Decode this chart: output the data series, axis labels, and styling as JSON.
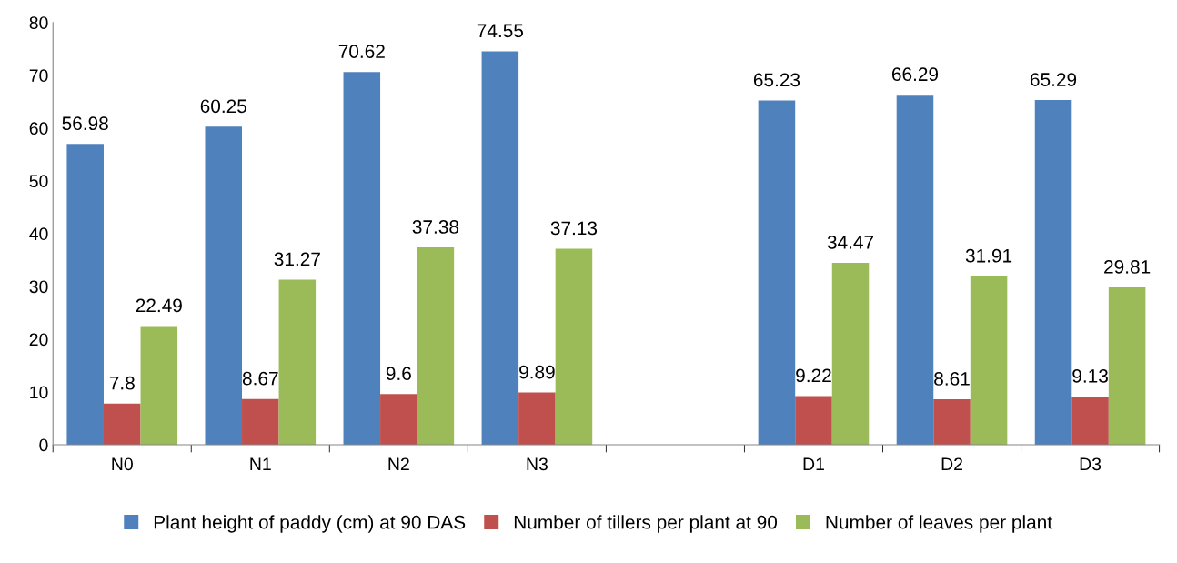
{
  "chart_data": {
    "type": "bar",
    "categories": [
      "N0",
      "N1",
      "N2",
      "N3",
      null,
      "D1",
      "D2",
      "D3"
    ],
    "series": [
      {
        "name": "Plant height of paddy (cm) at 90 DAS",
        "color": "#4f81bd",
        "values": [
          56.98,
          60.25,
          70.62,
          74.55,
          null,
          65.23,
          66.29,
          65.29
        ]
      },
      {
        "name": "Number of tillers per plant at 90",
        "color": "#c0504d",
        "values": [
          7.8,
          8.67,
          9.6,
          9.89,
          null,
          9.22,
          8.61,
          9.13
        ]
      },
      {
        "name": "Number of leaves per plant",
        "color": "#9bbb59",
        "values": [
          22.49,
          31.27,
          37.38,
          37.13,
          null,
          34.47,
          31.91,
          29.81
        ]
      }
    ],
    "ylim": [
      0,
      80
    ],
    "yticks": [
      0,
      10,
      20,
      30,
      40,
      50,
      60,
      70,
      80
    ],
    "data_labels": true,
    "legend": "bottom",
    "grid": false
  }
}
